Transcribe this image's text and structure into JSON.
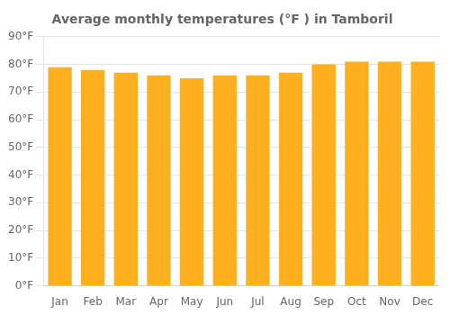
{
  "chart_data": {
    "type": "bar",
    "title": "Average monthly temperatures (°F ) in Tamboril",
    "categories": [
      "Jan",
      "Feb",
      "Mar",
      "Apr",
      "May",
      "Jun",
      "Jul",
      "Aug",
      "Sep",
      "Oct",
      "Nov",
      "Dec"
    ],
    "values": [
      79,
      78,
      77,
      76,
      75,
      76,
      76,
      77,
      80,
      81,
      81,
      81
    ],
    "color": "#FFB020",
    "ylim": [
      0,
      90
    ],
    "yticks": [
      {
        "value": 0,
        "label": "0°F"
      },
      {
        "value": 10,
        "label": "10°F"
      },
      {
        "value": 20,
        "label": "20°F"
      },
      {
        "value": 30,
        "label": "30°F"
      },
      {
        "value": 40,
        "label": "40°F"
      },
      {
        "value": 50,
        "label": "50°F"
      },
      {
        "value": 60,
        "label": "60°F"
      },
      {
        "value": 70,
        "label": "70°F"
      },
      {
        "value": 80,
        "label": "80°F"
      },
      {
        "value": 90,
        "label": "90°F"
      }
    ],
    "grid": true
  }
}
